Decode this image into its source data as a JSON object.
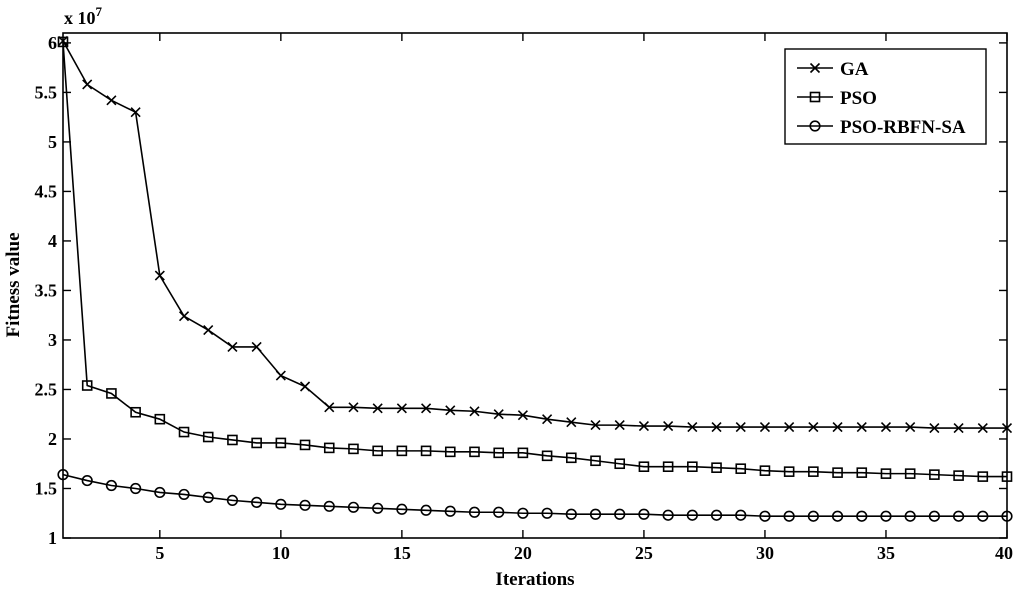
{
  "chart_data": {
    "type": "line",
    "xlabel": "Iterations",
    "ylabel": "Fitness value",
    "y_exponent_label": "x 10",
    "y_exponent_power": "7",
    "xlim": [
      1,
      40
    ],
    "ylim": [
      1,
      6.1
    ],
    "x_ticks": [
      5,
      10,
      15,
      20,
      25,
      30,
      35,
      40
    ],
    "y_ticks": [
      1,
      1.5,
      2,
      2.5,
      3,
      3.5,
      4,
      4.5,
      5,
      5.5,
      6
    ],
    "y_tick_labels": [
      "1",
      "1.5",
      "2",
      "2.5",
      "3",
      "3.5",
      "4",
      "4.5",
      "5",
      "5.5",
      "6"
    ],
    "grid": false,
    "legend_position": "top-right",
    "x": [
      1,
      2,
      3,
      4,
      5,
      6,
      7,
      8,
      9,
      10,
      11,
      12,
      13,
      14,
      15,
      16,
      17,
      18,
      19,
      20,
      21,
      22,
      23,
      24,
      25,
      26,
      27,
      28,
      29,
      30,
      31,
      32,
      33,
      34,
      35,
      36,
      37,
      38,
      39,
      40
    ],
    "series": [
      {
        "name": "GA",
        "marker": "x",
        "values": [
          6.02,
          5.58,
          5.42,
          5.3,
          3.65,
          3.24,
          3.1,
          2.93,
          2.93,
          2.64,
          2.53,
          2.32,
          2.32,
          2.31,
          2.31,
          2.31,
          2.29,
          2.28,
          2.25,
          2.24,
          2.2,
          2.17,
          2.14,
          2.14,
          2.13,
          2.13,
          2.12,
          2.12,
          2.12,
          2.12,
          2.12,
          2.12,
          2.12,
          2.12,
          2.12,
          2.12,
          2.11,
          2.11,
          2.11,
          2.11
        ]
      },
      {
        "name": "PSO",
        "marker": "square",
        "values": [
          6.01,
          2.54,
          2.46,
          2.27,
          2.2,
          2.07,
          2.02,
          1.99,
          1.96,
          1.96,
          1.94,
          1.91,
          1.9,
          1.88,
          1.88,
          1.88,
          1.87,
          1.87,
          1.86,
          1.86,
          1.83,
          1.81,
          1.78,
          1.75,
          1.72,
          1.72,
          1.72,
          1.71,
          1.7,
          1.68,
          1.67,
          1.67,
          1.66,
          1.66,
          1.65,
          1.65,
          1.64,
          1.63,
          1.62,
          1.62
        ]
      },
      {
        "name": "PSO-RBFN-SA",
        "marker": "circle",
        "values": [
          1.64,
          1.58,
          1.53,
          1.5,
          1.46,
          1.44,
          1.41,
          1.38,
          1.36,
          1.34,
          1.33,
          1.32,
          1.31,
          1.3,
          1.29,
          1.28,
          1.27,
          1.26,
          1.26,
          1.25,
          1.25,
          1.24,
          1.24,
          1.24,
          1.24,
          1.23,
          1.23,
          1.23,
          1.23,
          1.22,
          1.22,
          1.22,
          1.22,
          1.22,
          1.22,
          1.22,
          1.22,
          1.22,
          1.22,
          1.22
        ]
      }
    ]
  }
}
